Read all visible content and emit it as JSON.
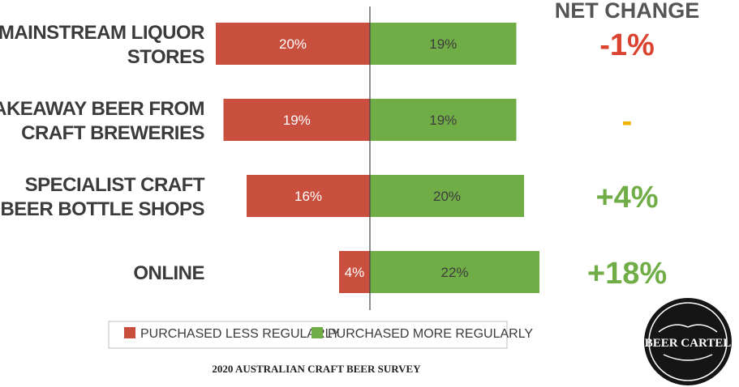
{
  "chart_data": {
    "type": "bar",
    "orientation": "diverging-horizontal",
    "categories": [
      [
        "MAINSTREAM LIQUOR",
        "STORES"
      ],
      [
        "TAKEAWAY BEER FROM",
        "CRAFT BREWERIES"
      ],
      [
        "SPECIALIST CRAFT",
        "BEER BOTTLE SHOPS"
      ],
      [
        "ONLINE"
      ]
    ],
    "series": [
      {
        "name": "PURCHASED LESS REGULARLY",
        "color": "#c94f3f",
        "values": [
          20,
          19,
          16,
          4
        ],
        "labels": [
          "20%",
          "19%",
          "16%",
          "4%"
        ]
      },
      {
        "name": "PURCHASED MORE REGULARLY",
        "color": "#70ad47",
        "values": [
          19,
          19,
          20,
          22
        ],
        "labels": [
          "19%",
          "19%",
          "20%",
          "22%"
        ]
      }
    ],
    "net_change": {
      "title": "NET CHANGE",
      "values": [
        "-1%",
        "-",
        "+4%",
        "+18%"
      ],
      "colors": [
        "#d9432f",
        "#f0b400",
        "#70ad47",
        "#70ad47"
      ]
    },
    "legend_placement": "bottom",
    "grid": false
  },
  "footer": "2020 AUSTRALIAN CRAFT BEER SURVEY",
  "logo": {
    "text": "BEER CARTEL",
    "icon": "beer-cartel-logo"
  }
}
